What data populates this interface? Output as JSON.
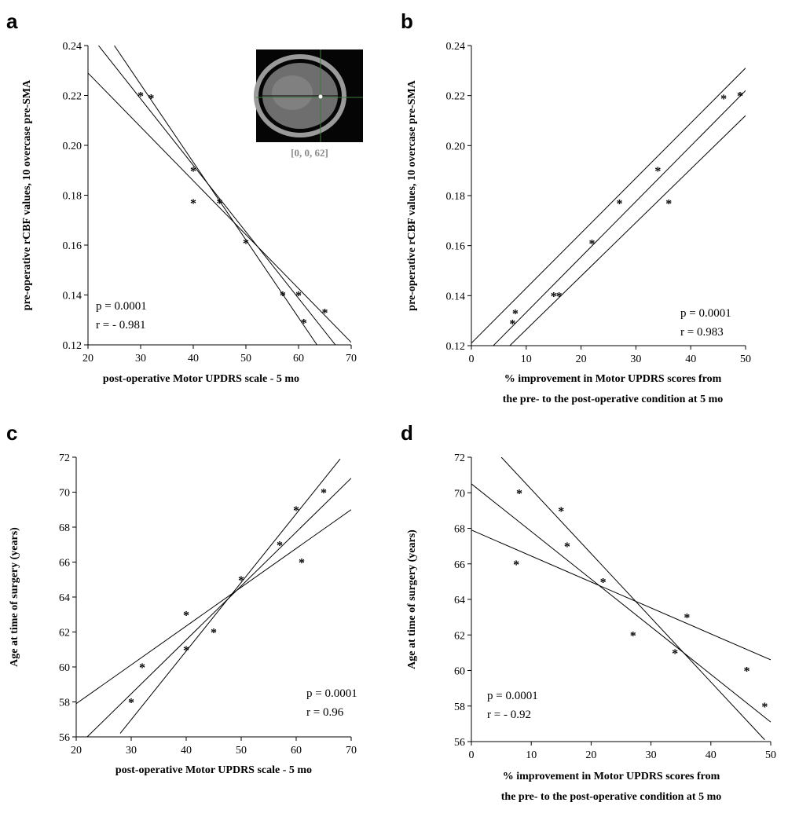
{
  "chart_data": [
    {
      "panel": "a",
      "type": "scatter",
      "xlabel": "post-operative Motor UPDRS scale - 5 mo",
      "ylabel": "pre-operative rCBF values, 10 overcase pre-SMA",
      "xlim": [
        20,
        70
      ],
      "ylim": [
        0.12,
        0.24
      ],
      "xticks": [
        20,
        30,
        40,
        50,
        60,
        70
      ],
      "yticks": [
        0.12,
        0.14,
        0.16,
        0.18,
        0.2,
        0.22,
        0.24
      ],
      "xtick_labels": [
        "20",
        "30",
        "40",
        "50",
        "60",
        "70"
      ],
      "ytick_labels": [
        "0.12",
        "0.14",
        "0.16",
        "0.18",
        "0.20",
        "0.22",
        "0.24"
      ],
      "points": [
        [
          30,
          0.22
        ],
        [
          32,
          0.219
        ],
        [
          40,
          0.19
        ],
        [
          40,
          0.177
        ],
        [
          45,
          0.177
        ],
        [
          50,
          0.161
        ],
        [
          57,
          0.14
        ],
        [
          60,
          0.14
        ],
        [
          61,
          0.129
        ],
        [
          65,
          0.133
        ]
      ],
      "fit_lines": [
        [
          [
            20,
            0.229
          ],
          [
            70,
            0.121
          ]
        ],
        [
          [
            22,
            0.24
          ],
          [
            67,
            0.12
          ]
        ],
        [
          [
            25,
            0.24
          ],
          [
            63.5,
            0.12
          ]
        ]
      ],
      "stats": [
        "p = 0.0001",
        "r = - 0.981"
      ],
      "inset_caption": "[0, 0, 62]",
      "grid": false
    },
    {
      "panel": "b",
      "type": "scatter",
      "xlabel": "% improvement in Motor UPDRS scores  from the pre- to the post-operative condition at 5 mo",
      "ylabel": "pre-operative rCBF values, 10 overcase pre-SMA",
      "xlim": [
        0,
        50
      ],
      "ylim": [
        0.12,
        0.24
      ],
      "xticks": [
        0,
        10,
        20,
        30,
        40,
        50
      ],
      "yticks": [
        0.12,
        0.14,
        0.16,
        0.18,
        0.2,
        0.22,
        0.24
      ],
      "xtick_labels": [
        "0",
        "10",
        "20",
        "30",
        "40",
        "50"
      ],
      "ytick_labels": [
        "0.12",
        "0.14",
        "0.16",
        "0.18",
        "0.20",
        "0.22",
        "0.24"
      ],
      "points": [
        [
          7.5,
          0.129
        ],
        [
          8,
          0.133
        ],
        [
          15,
          0.14
        ],
        [
          16,
          0.14
        ],
        [
          22,
          0.161
        ],
        [
          27,
          0.177
        ],
        [
          34,
          0.19
        ],
        [
          36,
          0.177
        ],
        [
          46,
          0.219
        ],
        [
          49,
          0.22
        ]
      ],
      "fit_lines": [
        [
          [
            0,
            0.121
          ],
          [
            50,
            0.231
          ]
        ],
        [
          [
            4,
            0.12
          ],
          [
            50,
            0.222
          ]
        ],
        [
          [
            7,
            0.12
          ],
          [
            50,
            0.212
          ]
        ]
      ],
      "stats": [
        "p = 0.0001",
        "r = 0.983"
      ],
      "grid": false
    },
    {
      "panel": "c",
      "type": "scatter",
      "xlabel": "post-operative Motor UPDRS scale - 5 mo",
      "ylabel": "Age at time of surgery (years)",
      "xlim": [
        20,
        70
      ],
      "ylim": [
        56,
        72
      ],
      "xticks": [
        20,
        30,
        40,
        50,
        60,
        70
      ],
      "yticks": [
        56,
        58,
        60,
        62,
        64,
        66,
        68,
        70,
        72
      ],
      "xtick_labels": [
        "20",
        "30",
        "40",
        "50",
        "60",
        "70"
      ],
      "ytick_labels": [
        "56",
        "58",
        "60",
        "62",
        "64",
        "66",
        "68",
        "70",
        "72"
      ],
      "points": [
        [
          30,
          58
        ],
        [
          32,
          60
        ],
        [
          40,
          63
        ],
        [
          40,
          61
        ],
        [
          45,
          62
        ],
        [
          50,
          65
        ],
        [
          57,
          67
        ],
        [
          60,
          69
        ],
        [
          61,
          66
        ],
        [
          65,
          70
        ]
      ],
      "fit_lines": [
        [
          [
            20,
            57.9
          ],
          [
            70,
            69.0
          ]
        ],
        [
          [
            22,
            56.0
          ],
          [
            70,
            70.8
          ]
        ],
        [
          [
            28,
            56.2
          ],
          [
            68,
            71.9
          ]
        ]
      ],
      "stats": [
        "p = 0.0001",
        "r = 0.96"
      ],
      "grid": false
    },
    {
      "panel": "d",
      "type": "scatter",
      "xlabel": "% improvement in Motor UPDRS scores  from the pre- to the post-operative condition at 5 mo",
      "ylabel": "Age at time of surgery (years)",
      "xlim": [
        0,
        50
      ],
      "ylim": [
        56,
        72
      ],
      "xticks": [
        0,
        10,
        20,
        30,
        40,
        50
      ],
      "yticks": [
        56,
        58,
        60,
        62,
        64,
        66,
        68,
        70,
        72
      ],
      "xtick_labels": [
        "0",
        "10",
        "20",
        "30",
        "40",
        "50"
      ],
      "ytick_labels": [
        "56",
        "58",
        "60",
        "62",
        "64",
        "66",
        "68",
        "70",
        "72"
      ],
      "points": [
        [
          7.5,
          66
        ],
        [
          8,
          70
        ],
        [
          15,
          69
        ],
        [
          16,
          67
        ],
        [
          22,
          65
        ],
        [
          27,
          62
        ],
        [
          34,
          61
        ],
        [
          36,
          63
        ],
        [
          46,
          60
        ],
        [
          49,
          58
        ]
      ],
      "fit_lines": [
        [
          [
            0,
            67.9
          ],
          [
            50,
            60.6
          ]
        ],
        [
          [
            0,
            70.5
          ],
          [
            50,
            57.1
          ]
        ],
        [
          [
            5,
            72
          ],
          [
            49,
            56.1
          ]
        ]
      ],
      "stats": [
        "p = 0.0001",
        "r = - 0.92"
      ],
      "grid": false
    }
  ]
}
